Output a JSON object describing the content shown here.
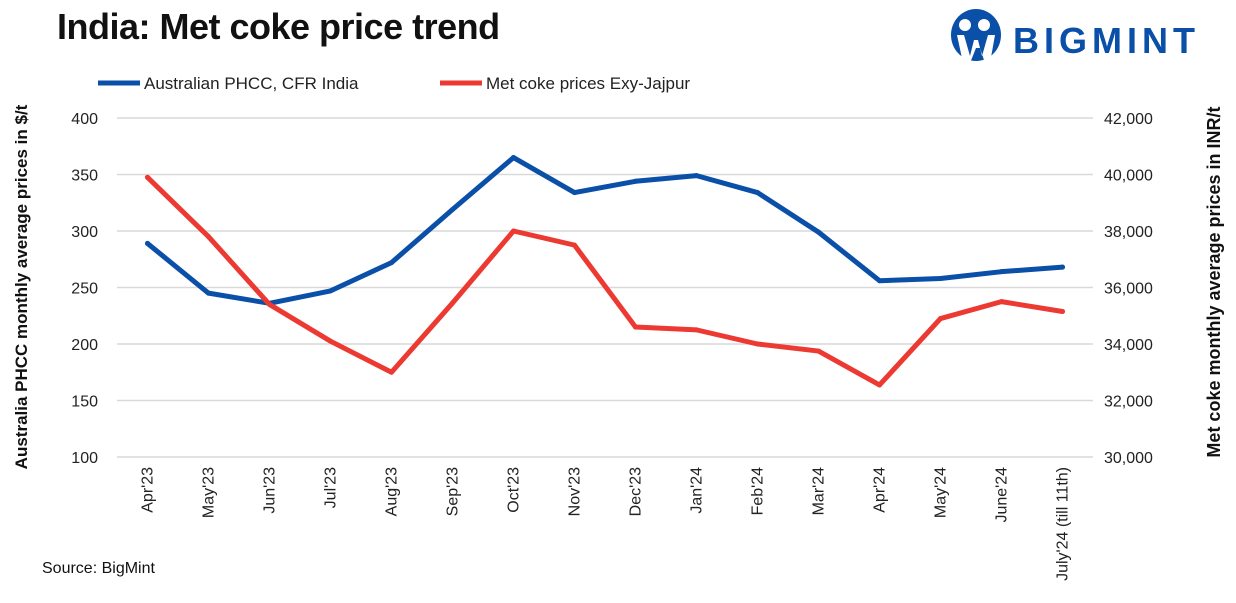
{
  "title": "India: Met coke price trend",
  "logo_text": "BIGMINT",
  "source": "Source: BigMint",
  "colors": {
    "blue": "#0a4fa8",
    "red": "#ec3a32",
    "grid": "#d9d9d9"
  },
  "chart_data": {
    "type": "line",
    "categories": [
      "Apr'23",
      "May'23",
      "Jun'23",
      "Jul'23",
      "Aug'23",
      "Sep'23",
      "Oct'23",
      "Nov'23",
      "Dec'23",
      "Jan'24",
      "Feb'24",
      "Mar'24",
      "Apr'24",
      "May'24",
      "June'24",
      "July'24 (till 11th)"
    ],
    "series": [
      {
        "name": "Australian PHCC, CFR India",
        "axis": "left",
        "color": "#0a4fa8",
        "values": [
          289,
          245,
          236,
          247,
          272,
          319,
          365,
          334,
          344,
          349,
          334,
          299,
          256,
          258,
          264,
          268
        ]
      },
      {
        "name": "Met coke prices Exy-Jajpur",
        "axis": "right",
        "color": "#ec3a32",
        "values": [
          39900,
          37800,
          35400,
          34100,
          33000,
          35450,
          38000,
          37500,
          34600,
          34500,
          34000,
          33750,
          32550,
          34900,
          35500,
          35150
        ]
      }
    ],
    "ylabel": "Australia PHCC monthly average prices in $/t",
    "y2label": "Met coke monthly average prices in INR/t",
    "ylim": [
      100,
      400
    ],
    "y2lim": [
      30000,
      42000
    ],
    "yticks": [
      "100",
      "150",
      "200",
      "250",
      "300",
      "350",
      "400"
    ],
    "y2ticks": [
      "30,000",
      "32,000",
      "34,000",
      "36,000",
      "38,000",
      "40,000",
      "42,000"
    ],
    "grid": true,
    "legend": "top"
  }
}
